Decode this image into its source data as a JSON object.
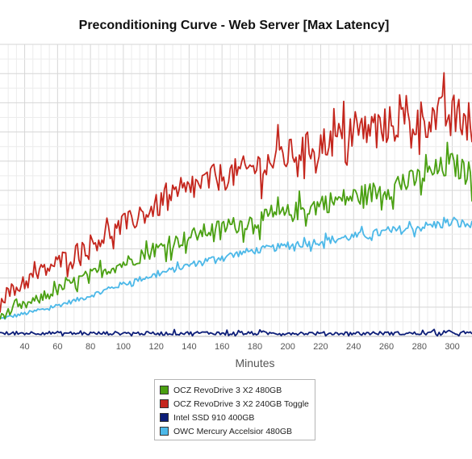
{
  "chart_data": {
    "type": "line",
    "title": "Preconditioning Curve - Web Server [Max Latency]",
    "xlabel": "Minutes",
    "ylabel": "",
    "xlim": [
      25,
      312
    ],
    "ylim": [
      0,
      10
    ],
    "x_ticks": [
      40,
      60,
      80,
      100,
      120,
      140,
      160,
      180,
      200,
      220,
      240,
      260,
      280,
      300
    ],
    "grid": true,
    "legend_position": "bottom-center",
    "series": [
      {
        "name": "OCZ RevoDrive 3 X2 480GB",
        "color": "#4aa012",
        "x": [
          25,
          50,
          75,
          100,
          125,
          150,
          175,
          200,
          225,
          250,
          275,
          300,
          312
        ],
        "y": [
          0.7,
          1.3,
          2.0,
          2.5,
          3.1,
          3.6,
          3.9,
          4.2,
          4.6,
          4.9,
          5.3,
          5.9,
          5.5
        ]
      },
      {
        "name": "OCZ RevoDrive 3 X2 240GB Toggle",
        "color": "#c4261d",
        "x": [
          25,
          50,
          75,
          100,
          125,
          150,
          175,
          200,
          225,
          250,
          275,
          300,
          312
        ],
        "y": [
          1.3,
          2.2,
          3.0,
          3.8,
          4.6,
          5.3,
          5.7,
          6.2,
          6.7,
          7.1,
          7.4,
          7.6,
          7.2
        ]
      },
      {
        "name": "Intel SSD 910 400GB",
        "color": "#0d1e78",
        "x": [
          25,
          50,
          75,
          100,
          125,
          150,
          175,
          200,
          225,
          250,
          275,
          300,
          312
        ],
        "y": [
          0.1,
          0.12,
          0.1,
          0.11,
          0.1,
          0.12,
          0.1,
          0.11,
          0.1,
          0.11,
          0.1,
          0.12,
          0.1
        ]
      },
      {
        "name": "OWC Mercury Accelsior 480GB",
        "color": "#4cb8e8",
        "x": [
          25,
          50,
          75,
          100,
          125,
          150,
          175,
          200,
          225,
          250,
          275,
          300,
          312
        ],
        "y": [
          0.6,
          0.9,
          1.3,
          1.8,
          2.2,
          2.6,
          2.9,
          3.1,
          3.3,
          3.5,
          3.7,
          3.9,
          3.8
        ]
      }
    ]
  }
}
